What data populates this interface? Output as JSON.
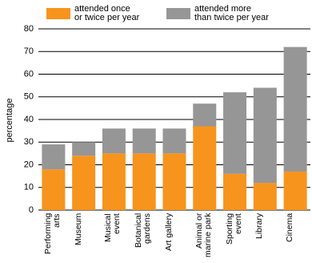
{
  "chart_data": {
    "type": "stacked-bar",
    "y_label": "percentage",
    "categories": [
      "Performing\narts",
      "Museum",
      "Musical\nevent",
      "Botanical\ngardens",
      "Art gallery",
      "Animal or\nmarine park",
      "Sporting\nevent",
      "Library",
      "Cinema"
    ],
    "series": [
      {
        "name": "attended once\nor twice per year",
        "color": "#f7941d",
        "values": [
          18,
          24,
          25,
          25,
          25,
          37,
          16,
          12,
          17
        ]
      },
      {
        "name": "attended more\nthan twice per year",
        "color": "#969696",
        "values": [
          11,
          6,
          11,
          11,
          11,
          10,
          36,
          42,
          55
        ]
      }
    ],
    "ylim": [
      0,
      80
    ],
    "yticks": [
      0,
      10,
      20,
      30,
      40,
      50,
      60,
      70,
      80
    ],
    "grid": true
  }
}
